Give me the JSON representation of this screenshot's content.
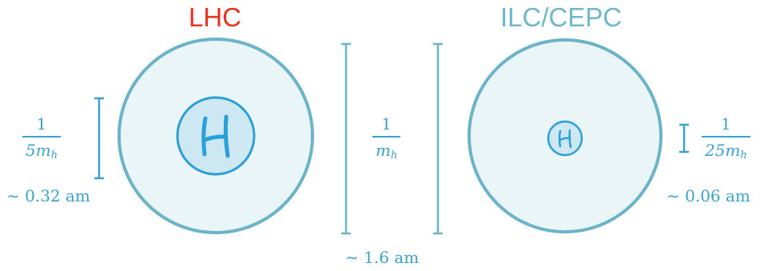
{
  "titles": {
    "left": "LHC",
    "right": "ILC/CEPC"
  },
  "left": {
    "fraction_numerator": "1",
    "fraction_denominator": "5m",
    "fraction_subscript": "h",
    "scale_label": "∼ 0.32 am",
    "particle_glyph": "H"
  },
  "center": {
    "fraction_numerator": "1",
    "fraction_denominator": "m",
    "fraction_subscript": "h",
    "scale_label": "∼ 1.6 am"
  },
  "right": {
    "fraction_numerator": "1",
    "fraction_denominator": "25m",
    "fraction_subscript": "h",
    "scale_label": "∼ 0.06 am",
    "particle_glyph": "H"
  },
  "colors": {
    "lhc_title": "#e8321f",
    "ilc_title": "#6fb8cc",
    "outer_ring": "#6ab3c8",
    "outer_fill": "#eaf5f8",
    "inner_ring": "#2a9fd8",
    "inner_fill": "#cde8f3",
    "label_blue": "#3aa0cc"
  }
}
